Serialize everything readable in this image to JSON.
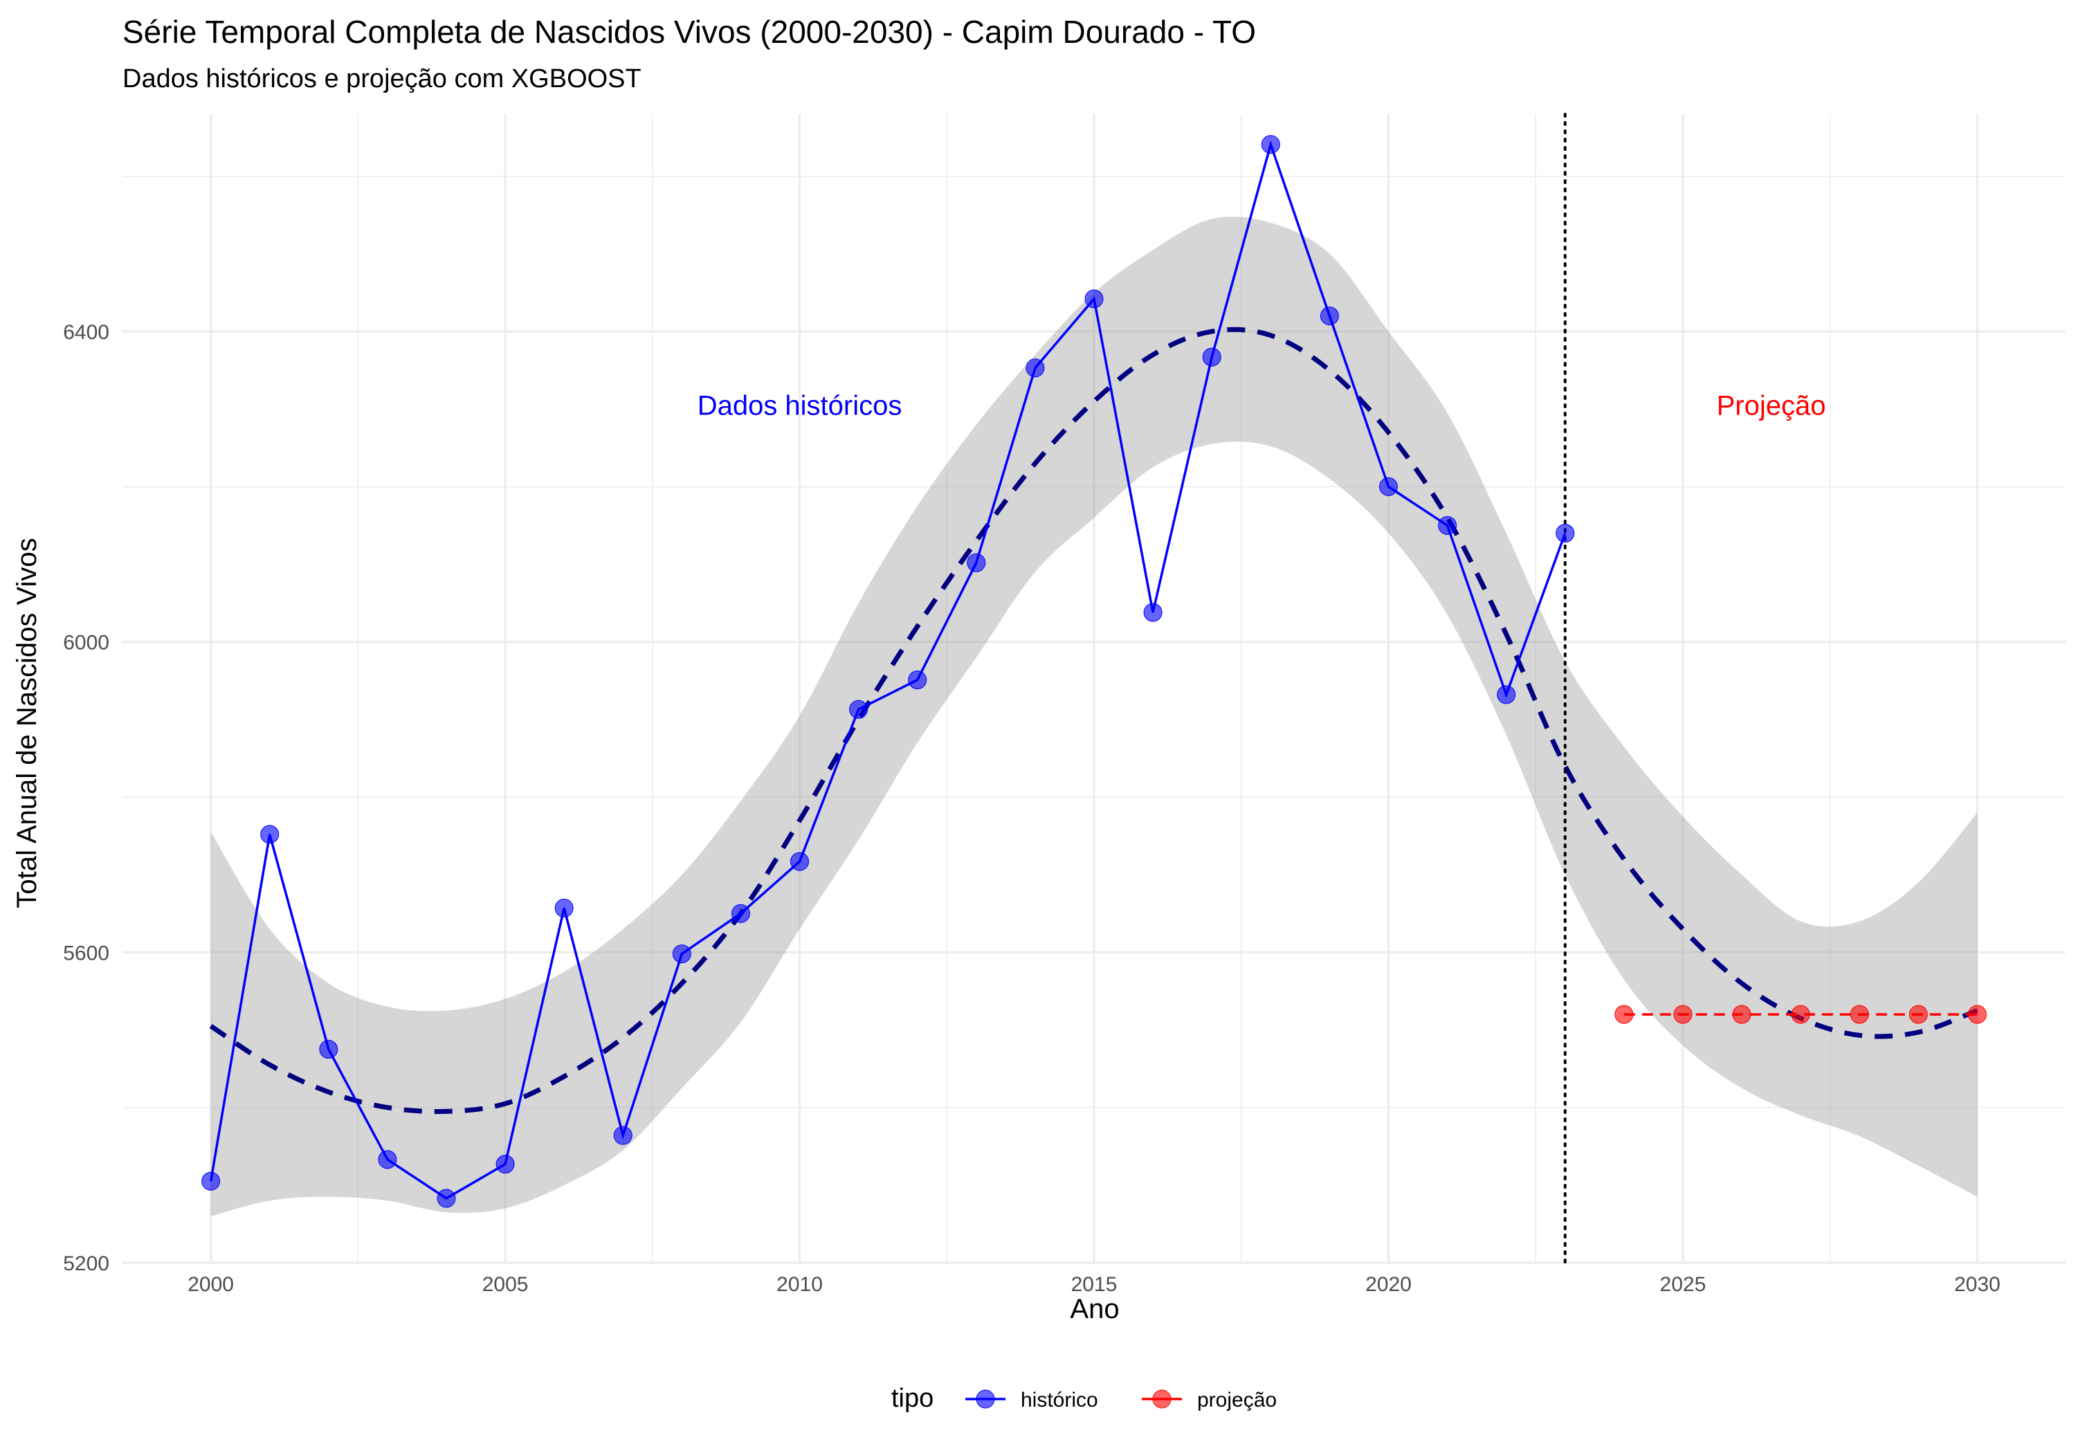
{
  "chart_data": {
    "type": "line",
    "title": "Série Temporal Completa de Nascidos Vivos (2000-2030) -  Capim Dourado - TO",
    "subtitle": "Dados históricos e projeção com XGBOOST",
    "xlabel": "Ano",
    "ylabel": "Total Anual de Nascidos Vivos",
    "xlim": [
      1998.5,
      2031.5
    ],
    "ylim": [
      5200,
      6680
    ],
    "x_ticks": [
      2000,
      2005,
      2010,
      2015,
      2020,
      2025,
      2030
    ],
    "y_ticks": [
      5200,
      5600,
      6000,
      6400
    ],
    "grid": true,
    "vline_x": 2023,
    "annotations": [
      {
        "text": "Dados históricos",
        "x": 2010,
        "y": 6305,
        "color": "#0000ff"
      },
      {
        "text": "Projeção",
        "x": 2026.5,
        "y": 6305,
        "color": "#ff0000"
      }
    ],
    "legend": {
      "title": "tipo",
      "position": "bottom"
    },
    "series": [
      {
        "name": "histórico",
        "color": "#0000ff",
        "x": [
          2000,
          2001,
          2002,
          2003,
          2004,
          2005,
          2006,
          2007,
          2008,
          2009,
          2010,
          2011,
          2012,
          2013,
          2014,
          2015,
          2016,
          2017,
          2018,
          2019,
          2020,
          2021,
          2022,
          2023
        ],
        "y": [
          5305,
          5752,
          5475,
          5333,
          5283,
          5327,
          5657,
          5364,
          5598,
          5650,
          5717,
          5913,
          5951,
          6102,
          6353,
          6442,
          6038,
          6367,
          6641,
          6420,
          6200,
          6150,
          5932,
          6140
        ]
      },
      {
        "name": "projeção",
        "color": "#ff0000",
        "x": [
          2024,
          2025,
          2026,
          2027,
          2028,
          2029,
          2030
        ],
        "y": [
          5520,
          5520,
          5520,
          5520,
          5520,
          5520,
          5520
        ]
      }
    ],
    "trend": {
      "color": "#000080",
      "x": [
        2000,
        2001,
        2002,
        2003,
        2004,
        2005,
        2006,
        2007,
        2008,
        2009,
        2010,
        2011,
        2012,
        2013,
        2014,
        2015,
        2016,
        2017,
        2018,
        2019,
        2020,
        2021,
        2022,
        2023,
        2024,
        2025,
        2026,
        2027,
        2028,
        2029,
        2030
      ],
      "y": [
        5505,
        5455,
        5420,
        5400,
        5395,
        5405,
        5440,
        5490,
        5560,
        5650,
        5770,
        5900,
        6020,
        6130,
        6230,
        6310,
        6370,
        6400,
        6395,
        6350,
        6270,
        6160,
        6010,
        5840,
        5720,
        5630,
        5560,
        5515,
        5493,
        5497,
        5525
      ],
      "band_lo": [
        5260,
        5280,
        5285,
        5280,
        5265,
        5270,
        5300,
        5345,
        5425,
        5510,
        5630,
        5745,
        5870,
        5980,
        6090,
        6160,
        6225,
        6255,
        6252,
        6210,
        6140,
        6035,
        5880,
        5700,
        5565,
        5480,
        5425,
        5390,
        5363,
        5325,
        5285
      ],
      "band_hi": [
        5755,
        5630,
        5560,
        5530,
        5525,
        5540,
        5575,
        5630,
        5700,
        5795,
        5905,
        6050,
        6175,
        6280,
        6370,
        6450,
        6505,
        6545,
        6540,
        6500,
        6400,
        6295,
        6140,
        5975,
        5865,
        5775,
        5700,
        5640,
        5640,
        5690,
        5780
      ]
    }
  }
}
